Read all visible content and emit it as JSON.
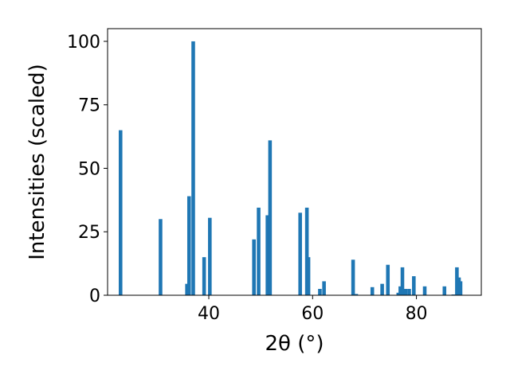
{
  "chart_data": {
    "type": "bar",
    "xlabel": "2θ (°)",
    "ylabel": "Intensities (scaled)",
    "xlim": [
      20.5,
      92.5
    ],
    "ylim": [
      0,
      105
    ],
    "xticks": [
      40,
      60,
      80
    ],
    "yticks": [
      0,
      25,
      50,
      75,
      100
    ],
    "grid": false,
    "bar_color": "#1f77b4",
    "bar_width": 0.7,
    "x": [
      23.0,
      30.7,
      35.8,
      36.2,
      37.0,
      39.1,
      40.2,
      48.7,
      49.6,
      51.3,
      51.8,
      57.6,
      58.9,
      59.2,
      61.4,
      62.2,
      67.8,
      68.4,
      71.5,
      73.4,
      74.5,
      76.5,
      76.9,
      77.3,
      77.9,
      78.6,
      79.5,
      81.6,
      85.4,
      87.1,
      87.8,
      88.2,
      88.5
    ],
    "values": [
      65,
      30,
      4.5,
      39,
      100,
      15,
      30.5,
      22,
      34.5,
      31.5,
      61,
      32.5,
      34.5,
      15,
      2.5,
      5.5,
      14,
      0.5,
      3.2,
      4.5,
      12,
      1,
      3.5,
      11,
      2.5,
      2.5,
      7.5,
      3.5,
      3.5,
      0.3,
      11,
      7,
      5.5
    ]
  }
}
